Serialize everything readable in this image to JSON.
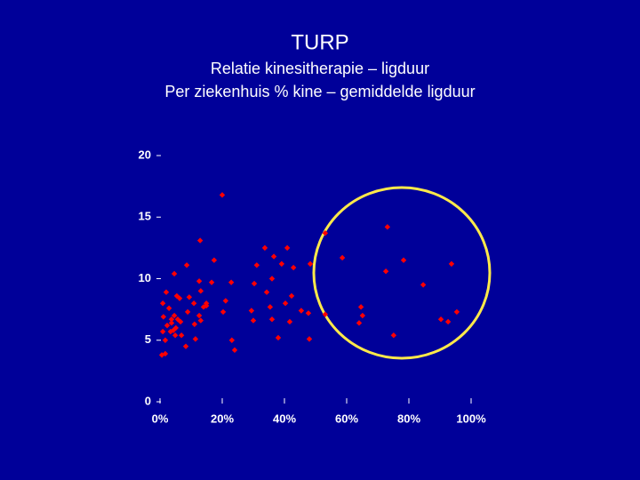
{
  "chart_data": {
    "type": "scatter",
    "title": "TURP",
    "subtitle": [
      "Relatie kinesitherapie – ligduur",
      "Per ziekenhuis % kine – gemiddelde ligduur"
    ],
    "color": "#ff0000",
    "xlim": [
      0,
      100
    ],
    "ylim": [
      0,
      20
    ],
    "xticks": [
      {
        "value": 0,
        "label": "0%"
      },
      {
        "value": 20,
        "label": "20%"
      },
      {
        "value": 40,
        "label": "40%"
      },
      {
        "value": 60,
        "label": "60%"
      },
      {
        "value": 80,
        "label": "80%"
      },
      {
        "value": 100,
        "label": "100%"
      }
    ],
    "yticks": [
      0,
      5,
      10,
      15,
      20
    ],
    "x": [
      20,
      73.1,
      53.1,
      12.9,
      33.7,
      40.9,
      58.6,
      36.6,
      17.4,
      8.6,
      31.1,
      39.1,
      42.9,
      48.3,
      78.3,
      93.7,
      72.6,
      4.6,
      22.9,
      12.6,
      16.6,
      30.3,
      36.0,
      84.6,
      2.0,
      5.4,
      9.4,
      13.1,
      34.3,
      42.3,
      21.1,
      14.9,
      10.9,
      6.3,
      64.6,
      0.9,
      2.9,
      40.3,
      35.4,
      45.4,
      14.0,
      14.9,
      8.9,
      20.3,
      29.4,
      47.7,
      53.1,
      65.1,
      12.6,
      4.6,
      5.7,
      1.1,
      13.1,
      6.6,
      30.0,
      36.0,
      41.7,
      64.0,
      90.3,
      95.4,
      92.6,
      3.7,
      2.3,
      5.1,
      11.1,
      3.4,
      0.9,
      6.9,
      38.0,
      23.1,
      48.0,
      75.1,
      11.4,
      1.7,
      4.9,
      8.3,
      24.0,
      1.7,
      0.6,
      3.7,
      4.3
    ],
    "values": [
      16.8,
      14.2,
      13.7,
      13.1,
      12.5,
      12.5,
      11.7,
      11.8,
      11.5,
      11.1,
      11.1,
      11.2,
      10.9,
      11.2,
      11.5,
      11.2,
      10.6,
      10.4,
      9.7,
      9.8,
      9.7,
      9.6,
      10.0,
      9.5,
      8.9,
      8.6,
      8.5,
      9.0,
      8.9,
      8.6,
      8.2,
      8.0,
      8.0,
      8.4,
      7.7,
      8.0,
      7.6,
      8.0,
      7.7,
      7.4,
      7.7,
      7.8,
      7.3,
      7.3,
      7.4,
      7.2,
      7.1,
      7.0,
      7.0,
      7.0,
      6.7,
      6.9,
      6.6,
      6.5,
      6.6,
      6.7,
      6.5,
      6.4,
      6.7,
      7.3,
      6.5,
      6.4,
      6.2,
      6.0,
      6.3,
      5.7,
      5.7,
      5.4,
      5.2,
      5.0,
      5.1,
      5.4,
      5.1,
      5.0,
      5.4,
      4.5,
      4.2,
      3.9,
      3.8,
      6.7,
      5.8
    ]
  }
}
